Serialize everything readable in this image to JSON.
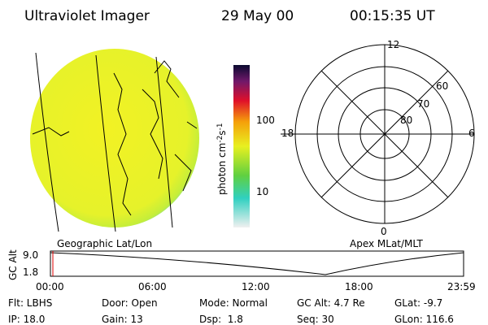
{
  "header": {
    "title": "Ultraviolet Imager",
    "date": "29 May 00",
    "time": "00:15:35 UT"
  },
  "colorbar": {
    "label": [
      "photon cm",
      "-2",
      "s",
      "-1"
    ],
    "ticks": [
      "100",
      "10"
    ]
  },
  "polar_plot": {
    "labels": [
      "12",
      "18",
      "6",
      "0",
      "60",
      "70",
      "80"
    ]
  },
  "captions": [
    "Geographic Lat/Lon",
    "Apex MLat/MLT"
  ],
  "altitude_plot": {
    "y_label": "GC Alt",
    "y_ticks": [
      "9.0",
      "1.8"
    ],
    "x_ticks": [
      "00:00",
      "06:00",
      "12:00",
      "18:00",
      "23:59"
    ]
  },
  "info": {
    "rows": [
      [
        "Flt: LBHS",
        "Door: Open",
        "Mode: Normal",
        "GC Alt: 4.7 Re",
        "GLat: -9.7"
      ],
      [
        "IP: 18.0",
        "Gain: 13",
        "Dsp:  1.8",
        "Seq: 30",
        "GLon: 116.6"
      ]
    ]
  }
}
